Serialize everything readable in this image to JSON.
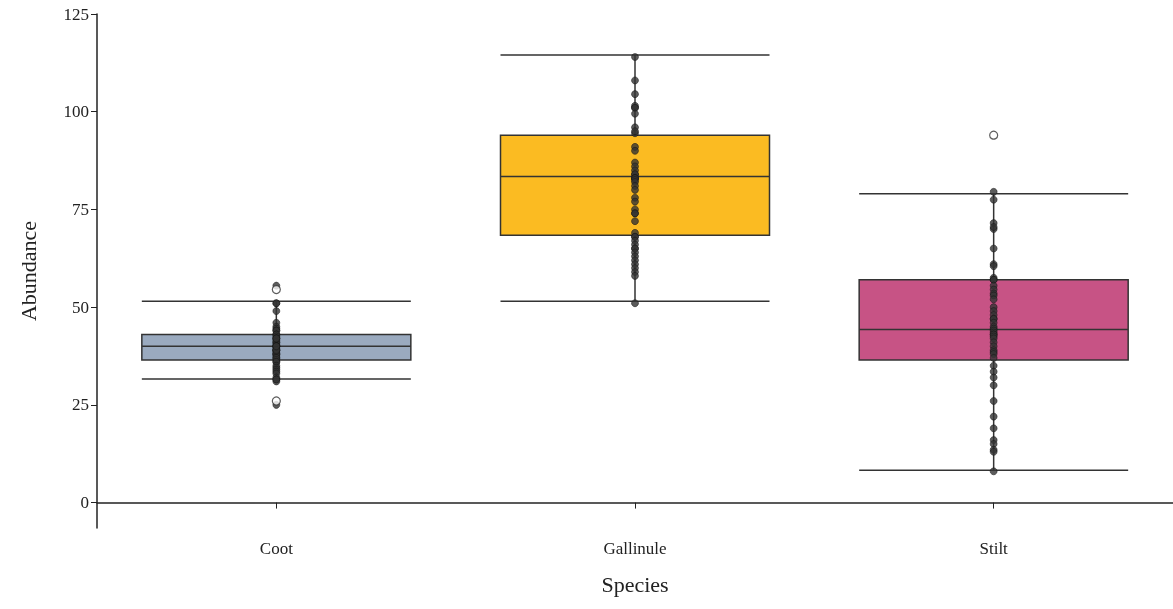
{
  "chart_data": {
    "type": "box",
    "xlabel": "Species",
    "ylabel": "Abundance",
    "categories": [
      "Coot",
      "Gallinule",
      "Stilt"
    ],
    "ylim": [
      -6.5,
      125
    ],
    "yticks": [
      0,
      25,
      50,
      75,
      100,
      125
    ],
    "grid": false,
    "series": [
      {
        "colors": [
          "#9aaabf",
          "#fbbb22",
          "#c75385"
        ],
        "boxes": [
          {
            "low": 31.6,
            "q1": 36.5,
            "median": 40,
            "q3": 43,
            "high": 51.5,
            "outliers": [
              54.5,
              26
            ]
          },
          {
            "low": 51.5,
            "q1": 68.4,
            "median": 83.4,
            "q3": 94,
            "high": 114.5
          },
          {
            "low": 8.3,
            "q1": 36.5,
            "median": 44.3,
            "q3": 57,
            "high": 79,
            "outliers": [
              94
            ]
          }
        ]
      },
      {
        "type": "scatter",
        "color": "#333333",
        "x": [
          "Coot",
          "Coot",
          "Coot",
          "Coot",
          "Coot",
          "Coot",
          "Coot",
          "Coot",
          "Coot",
          "Coot",
          "Coot",
          "Coot",
          "Coot",
          "Coot",
          "Coot",
          "Coot",
          "Coot",
          "Coot",
          "Coot",
          "Coot",
          "Coot",
          "Coot",
          "Coot",
          "Coot",
          "Coot",
          "Coot",
          "Coot",
          "Coot",
          "Coot",
          "Coot",
          "Coot",
          "Coot",
          "Coot",
          "Coot",
          "Coot",
          "Coot",
          "Coot",
          "Coot",
          "Coot",
          "Coot",
          "Coot",
          "Coot",
          "Coot",
          "Coot",
          "Coot",
          "Coot",
          "Coot",
          "Coot",
          "Gallinule",
          "Gallinule",
          "Gallinule",
          "Gallinule",
          "Gallinule",
          "Gallinule",
          "Gallinule",
          "Gallinule",
          "Gallinule",
          "Gallinule",
          "Gallinule",
          "Gallinule",
          "Gallinule",
          "Gallinule",
          "Gallinule",
          "Gallinule",
          "Gallinule",
          "Gallinule",
          "Gallinule",
          "Gallinule",
          "Gallinule",
          "Gallinule",
          "Gallinule",
          "Gallinule",
          "Gallinule",
          "Gallinule",
          "Gallinule",
          "Gallinule",
          "Gallinule",
          "Gallinule",
          "Gallinule",
          "Gallinule",
          "Gallinule",
          "Gallinule",
          "Gallinule",
          "Gallinule",
          "Gallinule",
          "Gallinule",
          "Gallinule",
          "Gallinule",
          "Gallinule",
          "Gallinule",
          "Gallinule",
          "Gallinule",
          "Gallinule",
          "Stilt",
          "Stilt",
          "Stilt",
          "Stilt",
          "Stilt",
          "Stilt",
          "Stilt",
          "Stilt",
          "Stilt",
          "Stilt",
          "Stilt",
          "Stilt",
          "Stilt",
          "Stilt",
          "Stilt",
          "Stilt",
          "Stilt",
          "Stilt",
          "Stilt",
          "Stilt",
          "Stilt",
          "Stilt",
          "Stilt",
          "Stilt",
          "Stilt",
          "Stilt",
          "Stilt",
          "Stilt",
          "Stilt",
          "Stilt",
          "Stilt",
          "Stilt",
          "Stilt",
          "Stilt",
          "Stilt",
          "Stilt",
          "Stilt",
          "Stilt",
          "Stilt",
          "Stilt",
          "Stilt",
          "Stilt",
          "Stilt",
          "Stilt",
          "Stilt",
          "Stilt",
          "Stilt",
          "Stilt"
        ],
        "values": [
          51,
          51,
          49,
          55.5,
          46,
          45,
          44.5,
          44,
          44,
          43,
          43,
          42.5,
          42,
          42,
          41.5,
          41,
          41,
          40.5,
          40,
          40,
          40,
          39.5,
          39,
          39,
          39,
          38.5,
          38,
          38,
          38,
          37.5,
          37,
          37,
          36.5,
          36,
          36,
          35,
          34.5,
          34,
          33.5,
          33,
          32,
          31.5,
          31,
          31.5,
          25,
          39,
          40,
          42,
          114,
          108,
          104.5,
          101,
          101.5,
          101,
          99.5,
          96,
          94.5,
          95,
          91,
          90,
          87,
          86,
          85,
          84,
          84,
          83,
          83,
          83,
          82.5,
          82,
          81,
          80,
          78,
          77,
          75,
          74,
          74,
          72,
          69,
          68,
          68,
          67,
          66,
          65,
          65,
          64,
          63,
          62,
          61,
          60,
          59,
          58,
          51,
          79.5,
          77.5,
          71.5,
          70,
          70.5,
          65,
          61,
          60.5,
          57.5,
          57,
          57,
          55.5,
          54.5,
          53.5,
          53,
          52,
          50,
          49,
          48,
          47,
          47,
          46,
          45,
          44.5,
          44,
          43.5,
          43,
          43,
          42.5,
          42,
          41,
          40,
          39,
          38.5,
          38,
          37,
          35,
          33.5,
          32,
          30,
          26,
          22,
          19,
          16,
          15,
          13.5,
          13,
          8
        ]
      }
    ]
  }
}
